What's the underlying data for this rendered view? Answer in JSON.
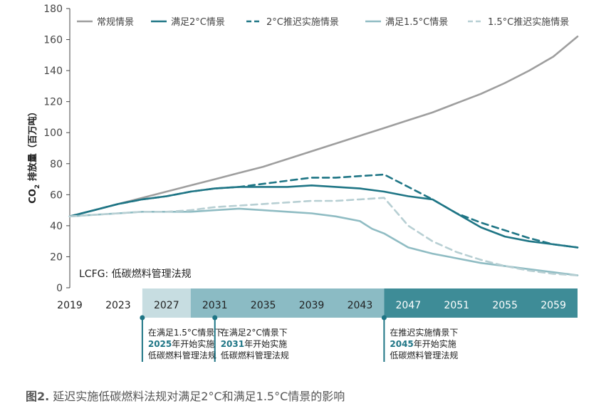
{
  "chart_data": {
    "type": "line",
    "ylabel": "CO2 排放量（百万吨）",
    "ylabel_main": "CO",
    "ylabel_sub": "2",
    "ylabel_rest": " 排放量（百万吨）",
    "ylim": [
      0,
      180
    ],
    "yticks": [
      0,
      20,
      40,
      60,
      80,
      100,
      120,
      140,
      160,
      180
    ],
    "xlim": [
      2019,
      2061
    ],
    "xticks": [
      2019,
      2023,
      2027,
      2031,
      2035,
      2039,
      2043,
      2047,
      2051,
      2055,
      2059
    ],
    "grid": false,
    "legend_position": "top",
    "series": [
      {
        "name": "常规情景",
        "style": "solid",
        "color": "#9e9e9e",
        "points": [
          [
            2019,
            46
          ],
          [
            2021,
            50
          ],
          [
            2023,
            54
          ],
          [
            2025,
            58
          ],
          [
            2027,
            62
          ],
          [
            2029,
            66
          ],
          [
            2031,
            70
          ],
          [
            2033,
            74
          ],
          [
            2035,
            78
          ],
          [
            2037,
            83
          ],
          [
            2039,
            88
          ],
          [
            2041,
            93
          ],
          [
            2043,
            98
          ],
          [
            2045,
            103
          ],
          [
            2047,
            108
          ],
          [
            2049,
            113
          ],
          [
            2051,
            119
          ],
          [
            2053,
            125
          ],
          [
            2055,
            132
          ],
          [
            2057,
            140
          ],
          [
            2059,
            149
          ],
          [
            2061,
            162
          ]
        ]
      },
      {
        "name": "满足2°C情景",
        "style": "solid",
        "color": "#1e7585",
        "points": [
          [
            2019,
            46
          ],
          [
            2021,
            50
          ],
          [
            2023,
            54
          ],
          [
            2025,
            57
          ],
          [
            2027,
            59
          ],
          [
            2029,
            62
          ],
          [
            2031,
            64
          ],
          [
            2033,
            65
          ],
          [
            2035,
            65
          ],
          [
            2037,
            65
          ],
          [
            2039,
            66
          ],
          [
            2041,
            65
          ],
          [
            2043,
            64
          ],
          [
            2045,
            62
          ],
          [
            2047,
            59
          ],
          [
            2049,
            57
          ],
          [
            2051,
            48
          ],
          [
            2053,
            39
          ],
          [
            2055,
            33
          ],
          [
            2057,
            30
          ],
          [
            2059,
            28
          ],
          [
            2061,
            26
          ]
        ]
      },
      {
        "name": "2°C推迟实施情景",
        "style": "dashed",
        "color": "#1e7585",
        "points": [
          [
            2019,
            46
          ],
          [
            2021,
            50
          ],
          [
            2023,
            54
          ],
          [
            2025,
            57
          ],
          [
            2027,
            59
          ],
          [
            2029,
            62
          ],
          [
            2031,
            64
          ],
          [
            2033,
            65
          ],
          [
            2035,
            67
          ],
          [
            2037,
            69
          ],
          [
            2039,
            71
          ],
          [
            2041,
            71
          ],
          [
            2043,
            72
          ],
          [
            2045,
            73
          ],
          [
            2047,
            65
          ],
          [
            2049,
            57
          ],
          [
            2051,
            48
          ],
          [
            2053,
            42
          ],
          [
            2055,
            37
          ],
          [
            2057,
            32
          ],
          [
            2059,
            28
          ],
          [
            2061,
            26
          ]
        ]
      },
      {
        "name": "满足1.5°C情景",
        "style": "solid",
        "color": "#8fbcc3",
        "points": [
          [
            2019,
            46
          ],
          [
            2021,
            47
          ],
          [
            2023,
            48
          ],
          [
            2025,
            49
          ],
          [
            2027,
            49
          ],
          [
            2029,
            49
          ],
          [
            2031,
            50
          ],
          [
            2033,
            51
          ],
          [
            2035,
            50
          ],
          [
            2037,
            49
          ],
          [
            2039,
            48
          ],
          [
            2041,
            46
          ],
          [
            2043,
            43
          ],
          [
            2044,
            38
          ],
          [
            2045,
            35
          ],
          [
            2047,
            26
          ],
          [
            2049,
            22
          ],
          [
            2051,
            19
          ],
          [
            2053,
            16
          ],
          [
            2055,
            14
          ],
          [
            2057,
            12
          ],
          [
            2059,
            10
          ],
          [
            2061,
            8
          ]
        ]
      },
      {
        "name": "1.5°C推迟实施情景",
        "style": "dashed",
        "color": "#b7cfd3",
        "points": [
          [
            2019,
            46
          ],
          [
            2021,
            47
          ],
          [
            2023,
            48
          ],
          [
            2025,
            49
          ],
          [
            2027,
            49
          ],
          [
            2029,
            50
          ],
          [
            2031,
            52
          ],
          [
            2033,
            53
          ],
          [
            2035,
            54
          ],
          [
            2037,
            55
          ],
          [
            2039,
            56
          ],
          [
            2041,
            56
          ],
          [
            2043,
            57
          ],
          [
            2045,
            58
          ],
          [
            2047,
            40
          ],
          [
            2049,
            30
          ],
          [
            2051,
            23
          ],
          [
            2053,
            18
          ],
          [
            2055,
            14
          ],
          [
            2057,
            11
          ],
          [
            2059,
            9
          ],
          [
            2061,
            8
          ]
        ]
      }
    ],
    "phases": [
      {
        "from": 2017,
        "to": 2025,
        "color": "#ffffff"
      },
      {
        "from": 2025,
        "to": 2029,
        "color": "#c7dde1"
      },
      {
        "from": 2029,
        "to": 2045,
        "color": "#8bbbc4"
      },
      {
        "from": 2045,
        "to": 2061,
        "color": "#3e8c97"
      }
    ],
    "annotation_inside": "LCFG: 低碳燃料管理法规",
    "notes": [
      {
        "year": 2025,
        "line1": "在满足1.5°C情景下",
        "line2": "2025年开始实施",
        "line3": "低碳燃料管理法规",
        "marker_color": "#1e7585"
      },
      {
        "year": 2031,
        "line1": "在满足2°C情景下",
        "line2": "2031年开始实施",
        "line3": "低碳燃料管理法规",
        "marker_color": "#1e7585"
      },
      {
        "year": 2045,
        "line1": "在推迟实施情景下",
        "line2": "2045年开始实施",
        "line3": "低碳燃料管理法规",
        "marker_color": "#1e7585"
      }
    ]
  },
  "caption": {
    "figure_label": "图2.",
    "text": " 延迟实施低碳燃料法规对满足2°C和满足1.5°C情景的影响"
  }
}
